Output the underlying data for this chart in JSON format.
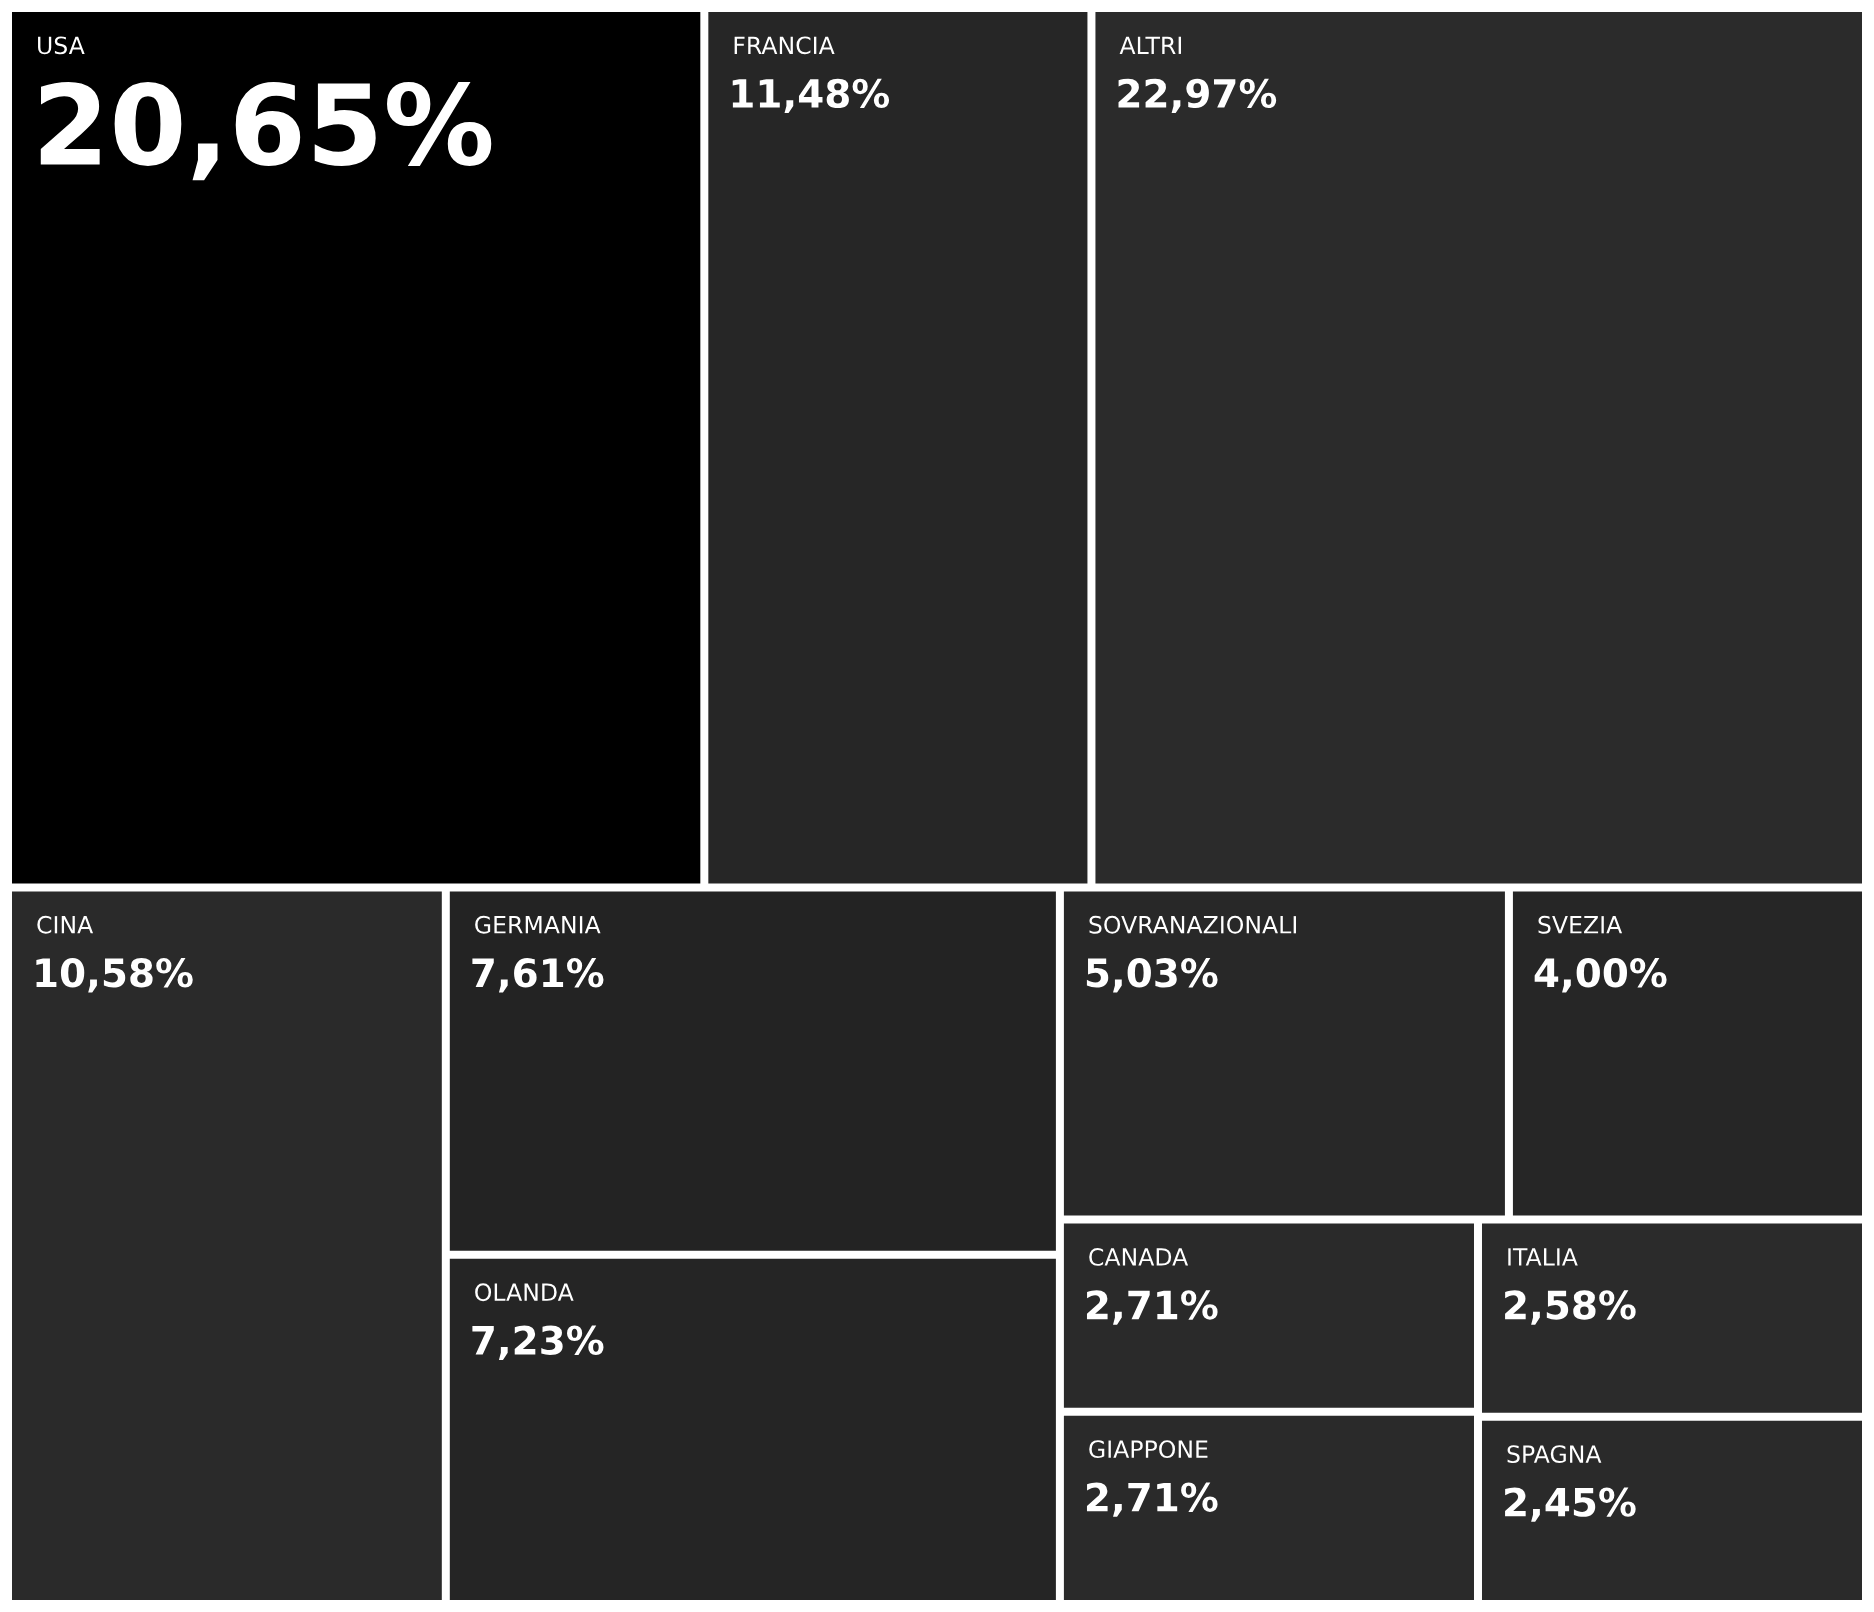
{
  "chart_data": {
    "type": "other",
    "categories": [
      "USA",
      "FRANCIA",
      "ALTRI",
      "CINA",
      "GERMANIA",
      "OLANDA",
      "SOVRANAZIONALI",
      "SVEZIA",
      "CANADA",
      "GIAPPONE",
      "ITALIA",
      "SPAGNA"
    ],
    "values": [
      20.65,
      11.48,
      22.97,
      10.58,
      7.61,
      7.23,
      5.03,
      4.0,
      2.71,
      2.71,
      2.58,
      2.45
    ],
    "value_labels": [
      "20,65%",
      "11,48%",
      "22,97%",
      "10,58%",
      "7,61%",
      "7,23%",
      "5,03%",
      "4,00%",
      "2,71%",
      "2,71%",
      "2,58%",
      "2,45%"
    ],
    "colors": [
      "#000000",
      "#262626",
      "#2b2b2b",
      "#2a2a2a",
      "#232323",
      "#252525",
      "#282828",
      "#262626",
      "#2a2a2a",
      "#2a2a2a",
      "#2b2b2b",
      "#2a2a2a"
    ]
  }
}
